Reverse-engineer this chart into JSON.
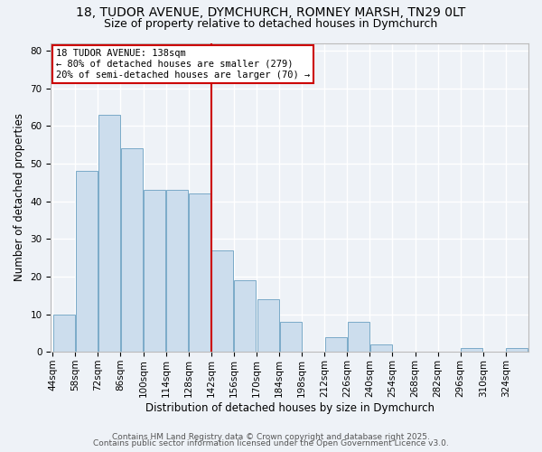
{
  "title1": "18, TUDOR AVENUE, DYMCHURCH, ROMNEY MARSH, TN29 0LT",
  "title2": "Size of property relative to detached houses in Dymchurch",
  "xlabel": "Distribution of detached houses by size in Dymchurch",
  "ylabel": "Number of detached properties",
  "bar_color": "#ccdded",
  "bar_edge_color": "#7aaac8",
  "bg_color": "#eef2f7",
  "grid_color": "#ffffff",
  "annotation_title": "18 TUDOR AVENUE: 138sqm",
  "annotation_line1": "← 80% of detached houses are smaller (279)",
  "annotation_line2": "20% of semi-detached houses are larger (70) →",
  "vline_x": 142,
  "vline_color": "#cc0000",
  "bin_edges": [
    44,
    58,
    72,
    86,
    100,
    114,
    128,
    142,
    156,
    170,
    184,
    198,
    212,
    226,
    240,
    254,
    268,
    282,
    296,
    310,
    324
  ],
  "bar_heights": [
    10,
    48,
    63,
    54,
    43,
    43,
    42,
    27,
    19,
    14,
    8,
    0,
    4,
    8,
    2,
    0,
    0,
    0,
    1,
    0,
    1
  ],
  "ylim": [
    0,
    82
  ],
  "yticks": [
    0,
    10,
    20,
    30,
    40,
    50,
    60,
    70,
    80
  ],
  "footnote1": "Contains HM Land Registry data © Crown copyright and database right 2025.",
  "footnote2": "Contains public sector information licensed under the Open Government Licence v3.0.",
  "title_fontsize": 10,
  "subtitle_fontsize": 9,
  "axis_label_fontsize": 8.5,
  "tick_fontsize": 7.5,
  "footnote_fontsize": 6.5,
  "annotation_fontsize": 7.5
}
